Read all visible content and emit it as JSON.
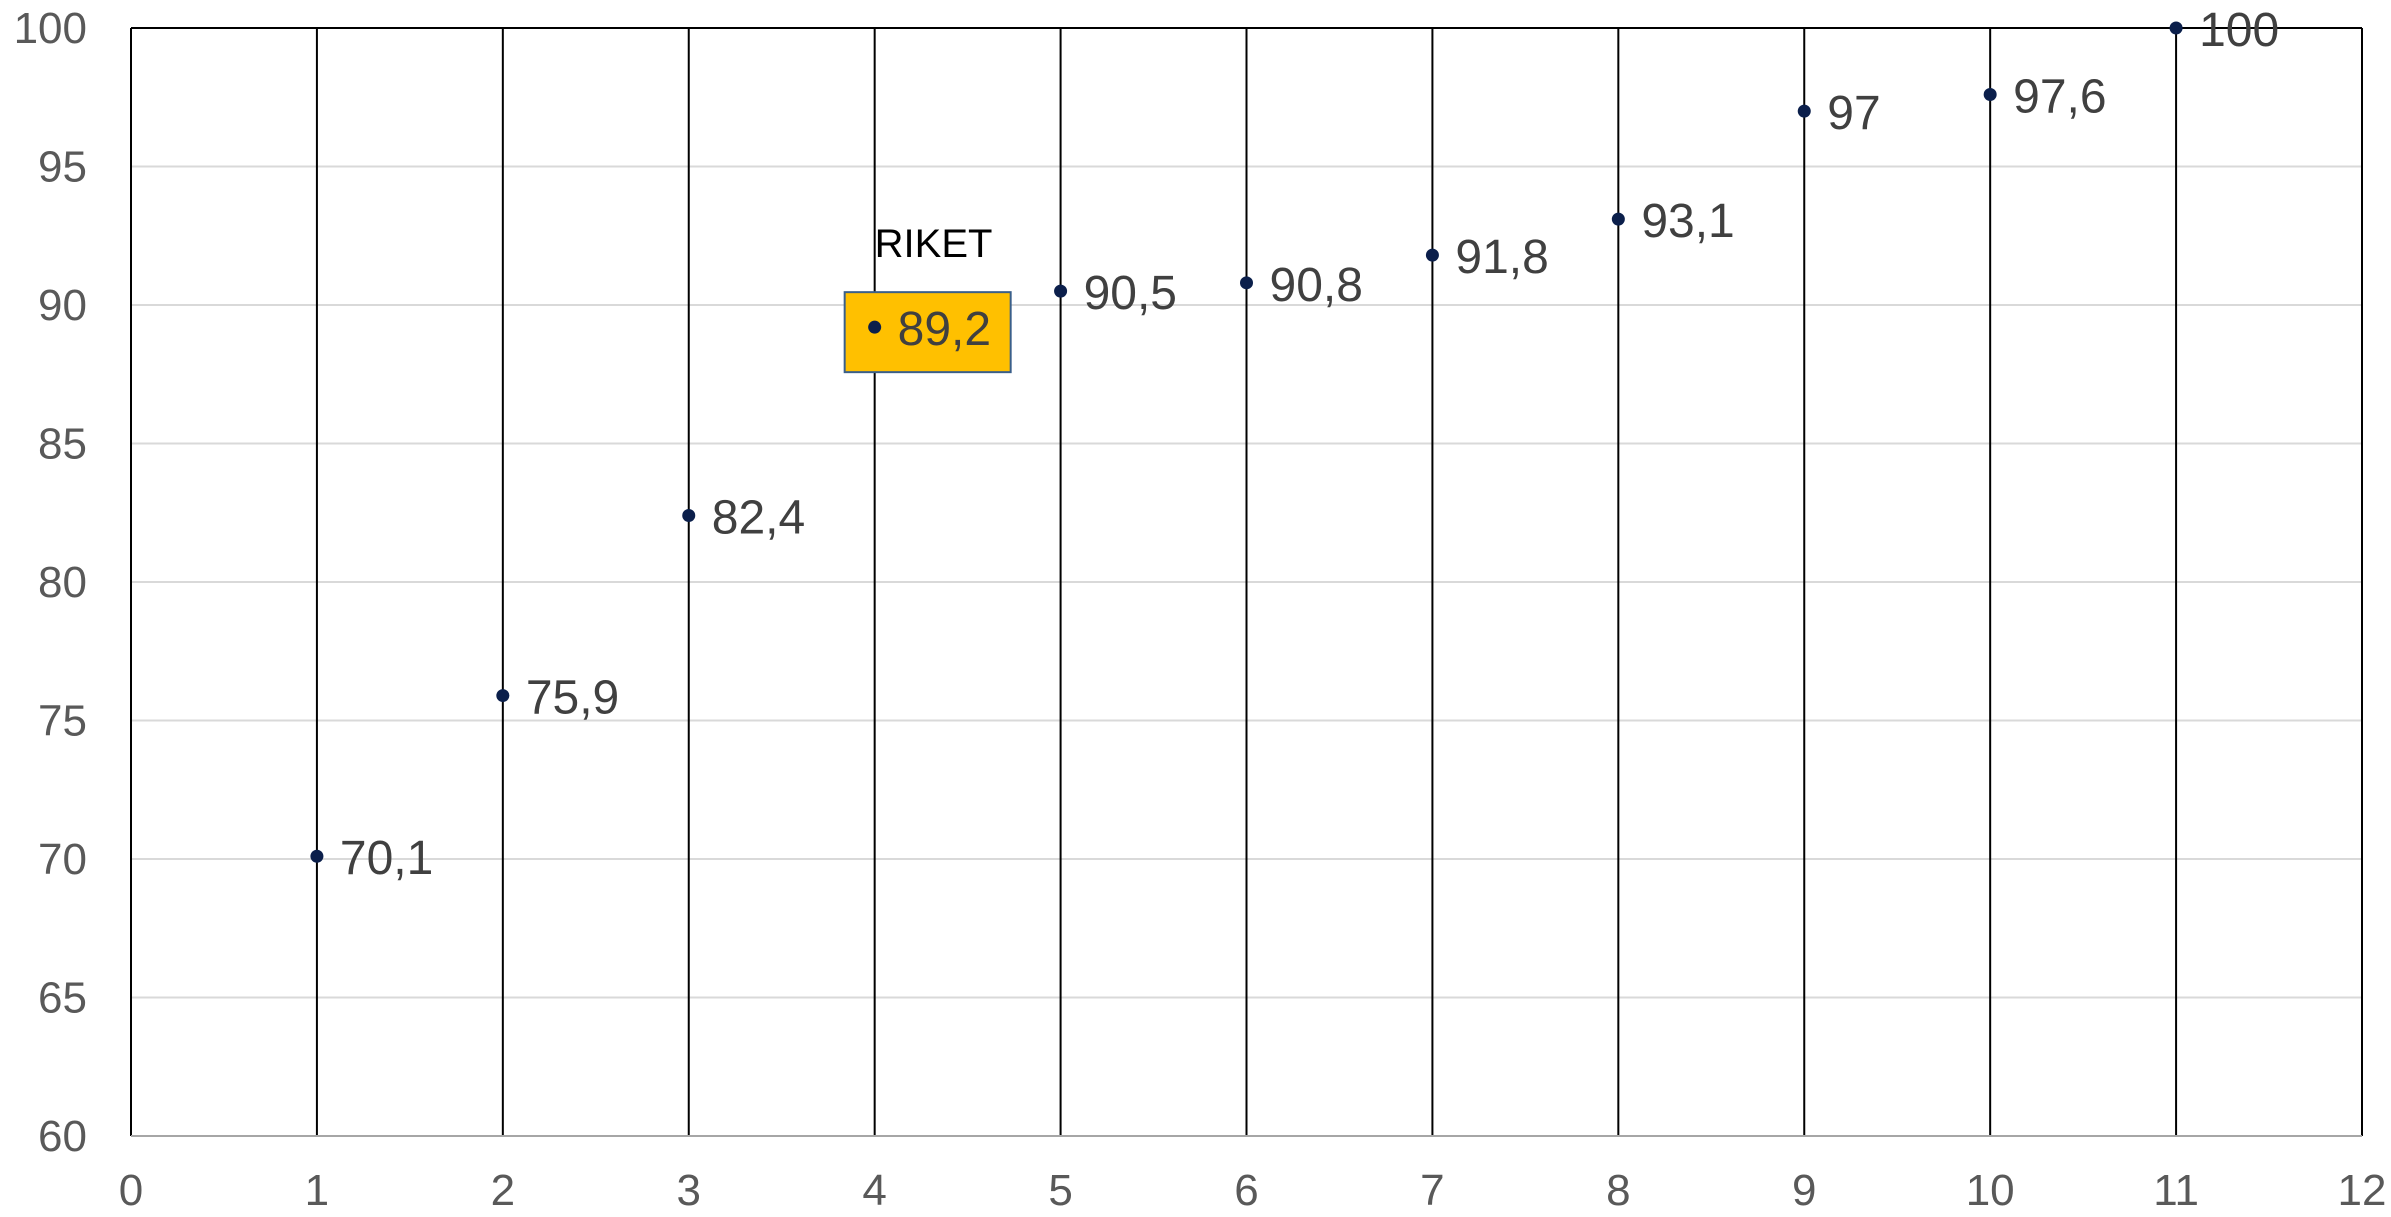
{
  "chart_data": {
    "type": "scatter",
    "title": "",
    "xlabel": "",
    "ylabel": "",
    "xlim": [
      0,
      12
    ],
    "ylim": [
      60,
      100
    ],
    "xticks": [
      "0",
      "1",
      "2",
      "3",
      "4",
      "5",
      "6",
      "7",
      "8",
      "9",
      "10",
      "11",
      "12"
    ],
    "yticks": [
      "60",
      "65",
      "70",
      "75",
      "80",
      "85",
      "90",
      "95",
      "100"
    ],
    "grid": {
      "horizontal": true,
      "vertical": false
    },
    "drop_lines": true,
    "colors": {
      "point": "#0B1F4B",
      "highlight_fill": "#FFC000",
      "highlight_border": "#3A5F8A",
      "gridline": "#D9D9D9",
      "axis": "#000000",
      "tick_text": "#595959",
      "label_text": "#404040"
    },
    "series": [
      {
        "x": [
          1,
          2,
          3,
          4,
          5,
          6,
          7,
          8,
          9,
          10,
          11
        ],
        "y": [
          70.1,
          75.9,
          82.4,
          89.2,
          90.5,
          90.8,
          91.8,
          93.1,
          97,
          97.6,
          100
        ],
        "labels": [
          "70,1",
          "75,9",
          "82,4",
          "89,2",
          "90,5",
          "90,8",
          "91,8",
          "93,1",
          "97",
          "97,6",
          "100"
        ]
      }
    ],
    "highlight": {
      "index": 3,
      "annotation": "RIKET"
    }
  }
}
